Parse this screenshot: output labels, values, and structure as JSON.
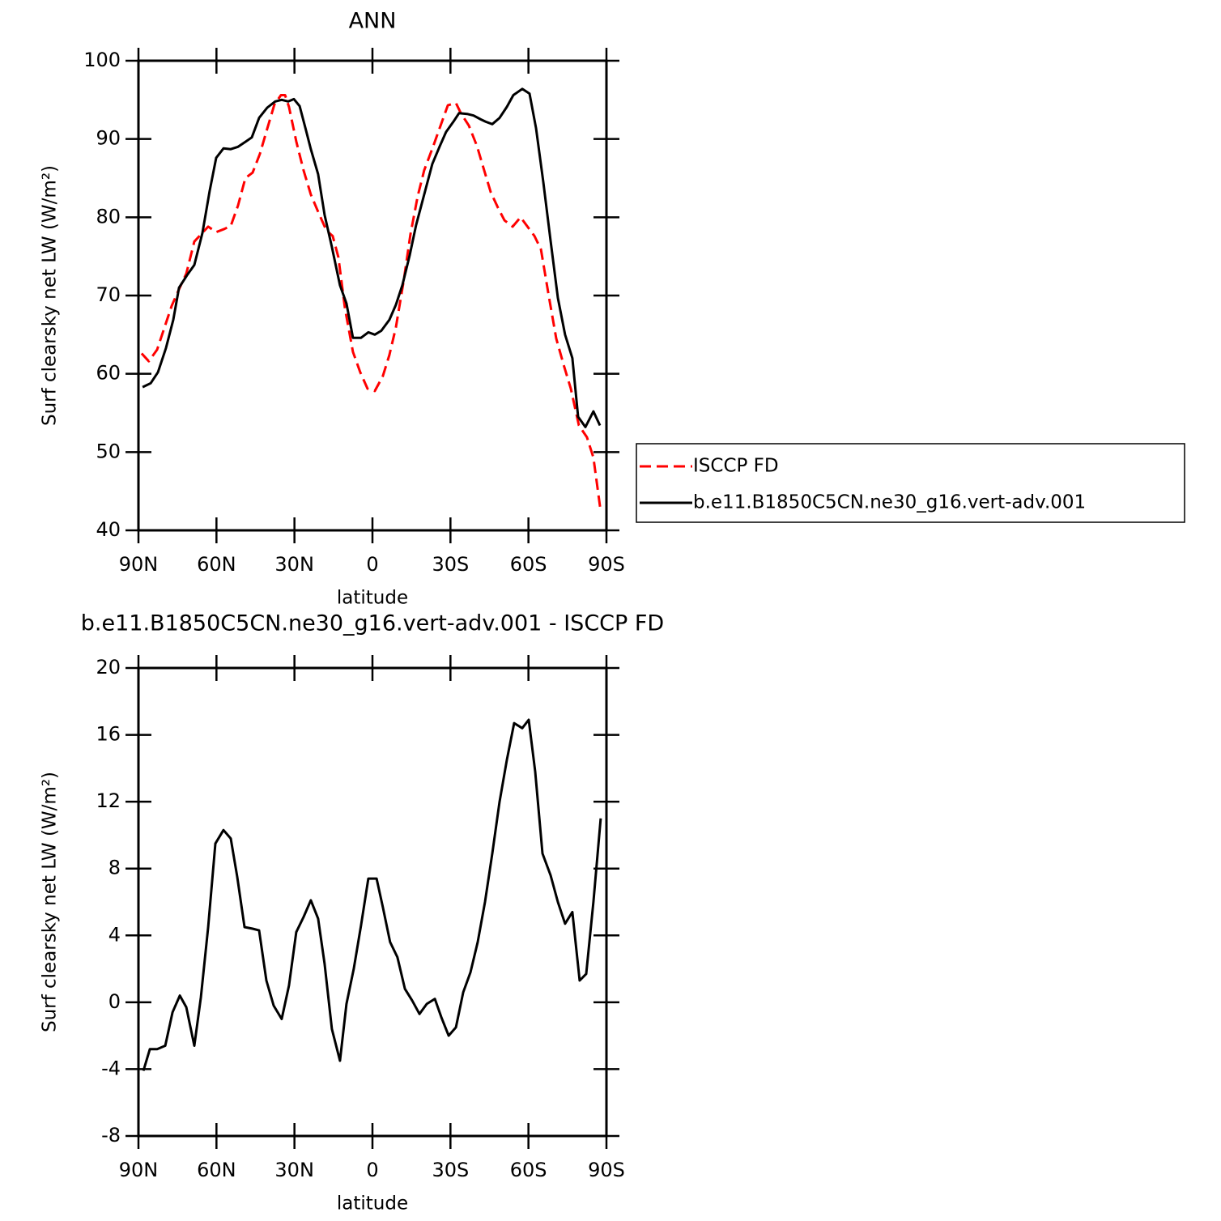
{
  "chart_data": [
    {
      "type": "line",
      "title": "ANN",
      "x_label": "latitude",
      "y_label": "Surf clearsky net LW (W/m²)",
      "xlim": [
        90,
        -90
      ],
      "ylim": [
        40,
        100
      ],
      "xticks": [
        {
          "value": 90,
          "label": "90N"
        },
        {
          "value": 60,
          "label": "60N"
        },
        {
          "value": 30,
          "label": "30N"
        },
        0,
        {
          "value": -30,
          "label": "30S"
        },
        {
          "value": -60,
          "label": "60S"
        },
        {
          "value": -90,
          "label": "90S"
        }
      ],
      "yticks": [
        40,
        50,
        60,
        70,
        80,
        90,
        100
      ],
      "legend": "right",
      "series": [
        {
          "name": "ISCCP FD",
          "color": "#ff0000",
          "dash": true,
          "x": [
            88.8,
            86.0,
            82.8,
            80.0,
            77.2,
            74.4,
            71.6,
            68.5,
            66.0,
            63.2,
            60.1,
            57.0,
            54.5,
            51.7,
            48.9,
            46.1,
            43.3,
            40.5,
            37.7,
            35.2,
            33.6,
            32.1,
            29.3,
            26.5,
            23.7,
            20.9,
            17.7,
            15.3,
            13.1,
            10.6,
            7.5,
            4.7,
            1.9,
            -0.9,
            -4.0,
            -6.5,
            -9.0,
            -12.1,
            -14.6,
            -17.4,
            -19.9,
            -23.4,
            -26.2,
            -29.0,
            -32.1,
            -34.0,
            -37.1,
            -40.2,
            -42.7,
            -45.5,
            -48.3,
            -50.8,
            -53.9,
            -57.0,
            -59.2,
            -62.3,
            -64.8,
            -67.9,
            -70.7,
            -73.5,
            -76.3,
            -79.4,
            -82.5,
            -85.0,
            -87.8
          ],
          "values": [
            62.6,
            61.6,
            63.1,
            65.9,
            68.7,
            70.8,
            72.8,
            76.9,
            77.8,
            78.8,
            78.1,
            78.5,
            78.9,
            81.5,
            85.0,
            85.7,
            88.1,
            91.3,
            94.4,
            95.6,
            95.6,
            94.1,
            89.7,
            86.0,
            82.9,
            80.7,
            78.3,
            77.6,
            74.9,
            68.4,
            62.8,
            60.2,
            58.1,
            57.8,
            59.7,
            62.4,
            65.9,
            72.1,
            77.8,
            82.7,
            86.0,
            89.1,
            91.7,
            94.3,
            94.6,
            93.3,
            91.7,
            89.1,
            86.3,
            83.2,
            81.2,
            79.6,
            78.8,
            80.0,
            79.0,
            77.6,
            75.9,
            69.8,
            64.5,
            61.2,
            58.1,
            53.4,
            51.9,
            49.3,
            42.4
          ]
        },
        {
          "name": "b.e11.B1850C5CN.ne30_g16.vert-adv.001",
          "color": "#000000",
          "dash": false,
          "x": [
            88.4,
            85.3,
            82.5,
            79.4,
            76.6,
            74.4,
            71.3,
            68.5,
            65.4,
            62.6,
            60.1,
            57.3,
            54.5,
            51.7,
            48.6,
            46.4,
            43.6,
            40.5,
            37.4,
            34.9,
            32.4,
            30.2,
            28.0,
            25.8,
            23.7,
            20.9,
            18.4,
            15.6,
            12.5,
            10.0,
            7.5,
            4.4,
            1.6,
            -0.9,
            -3.4,
            -6.5,
            -9.0,
            -11.5,
            -14.3,
            -16.8,
            -19.9,
            -23.0,
            -25.9,
            -28.3,
            -31.1,
            -33.3,
            -36.4,
            -38.9,
            -41.7,
            -43.6,
            -46.1,
            -48.9,
            -51.7,
            -54.2,
            -57.6,
            -60.4,
            -62.9,
            -65.7,
            -68.5,
            -71.3,
            -74.1,
            -76.9,
            -79.1,
            -81.9,
            -85.0,
            -87.5
          ],
          "values": [
            58.3,
            58.8,
            60.2,
            63.3,
            66.9,
            71.0,
            72.6,
            73.9,
            78.0,
            83.4,
            87.6,
            88.8,
            88.7,
            89.0,
            89.7,
            90.2,
            92.7,
            94.0,
            94.8,
            95.0,
            94.8,
            95.1,
            94.2,
            91.4,
            88.7,
            85.5,
            80.3,
            76.2,
            71.3,
            69.0,
            64.6,
            64.6,
            65.3,
            65.0,
            65.5,
            66.9,
            68.8,
            71.3,
            75.1,
            79.0,
            82.9,
            86.8,
            89.1,
            90.9,
            92.2,
            93.3,
            93.2,
            93.0,
            92.5,
            92.2,
            91.9,
            92.7,
            94.1,
            95.6,
            96.4,
            95.8,
            91.4,
            84.5,
            77.0,
            69.7,
            65.0,
            62.0,
            54.5,
            53.2,
            55.2,
            53.4
          ]
        }
      ]
    },
    {
      "type": "line",
      "title": "b.e11.B1850C5CN.ne30_g16.vert-adv.001 - ISCCP FD",
      "x_label": "latitude",
      "y_label": "Surf clearsky net LW (W/m²)",
      "xlim": [
        90,
        -90
      ],
      "ylim": [
        -8,
        20
      ],
      "xticks": [
        {
          "value": 90,
          "label": "90N"
        },
        {
          "value": 60,
          "label": "60N"
        },
        {
          "value": 30,
          "label": "30N"
        },
        0,
        {
          "value": -30,
          "label": "30S"
        },
        {
          "value": -60,
          "label": "60S"
        },
        {
          "value": -90,
          "label": "90S"
        }
      ],
      "yticks": [
        -8,
        -4,
        0,
        4,
        8,
        12,
        16,
        20
      ],
      "series": [
        {
          "color": "#000000",
          "dash": false,
          "x": [
            88.1,
            85.6,
            82.8,
            79.7,
            76.9,
            74.1,
            71.6,
            68.5,
            66.0,
            63.2,
            60.4,
            57.3,
            54.5,
            52.0,
            49.2,
            46.1,
            43.6,
            40.8,
            38.0,
            34.9,
            32.1,
            29.3,
            26.5,
            23.7,
            20.9,
            18.4,
            15.6,
            12.5,
            10.0,
            7.2,
            4.4,
            1.6,
            -1.6,
            -4.0,
            -6.8,
            -9.6,
            -12.5,
            -15.3,
            -18.1,
            -20.9,
            -24.0,
            -26.5,
            -29.3,
            -32.1,
            -34.9,
            -37.7,
            -40.5,
            -43.3,
            -46.1,
            -48.9,
            -51.7,
            -54.5,
            -57.6,
            -60.1,
            -62.6,
            -65.4,
            -68.5,
            -71.3,
            -74.1,
            -76.9,
            -79.7,
            -82.2,
            -85.0,
            -87.8
          ],
          "values": [
            -4.1,
            -2.8,
            -2.8,
            -2.6,
            -0.6,
            0.4,
            -0.3,
            -2.6,
            0.3,
            4.5,
            9.5,
            10.3,
            9.8,
            7.5,
            4.5,
            4.4,
            4.3,
            1.3,
            -0.2,
            -1.0,
            1.0,
            4.2,
            5.1,
            6.1,
            5.0,
            2.3,
            -1.6,
            -3.5,
            -0.1,
            2.0,
            4.6,
            7.4,
            7.4,
            5.7,
            3.6,
            2.7,
            0.8,
            0.1,
            -0.7,
            -0.1,
            0.2,
            -0.9,
            -2.0,
            -1.5,
            0.6,
            1.8,
            3.6,
            6.0,
            8.9,
            12.0,
            14.5,
            16.7,
            16.4,
            16.9,
            13.8,
            8.9,
            7.6,
            6.0,
            4.7,
            5.4,
            1.3,
            1.7,
            6.0,
            11.0
          ]
        }
      ]
    }
  ]
}
